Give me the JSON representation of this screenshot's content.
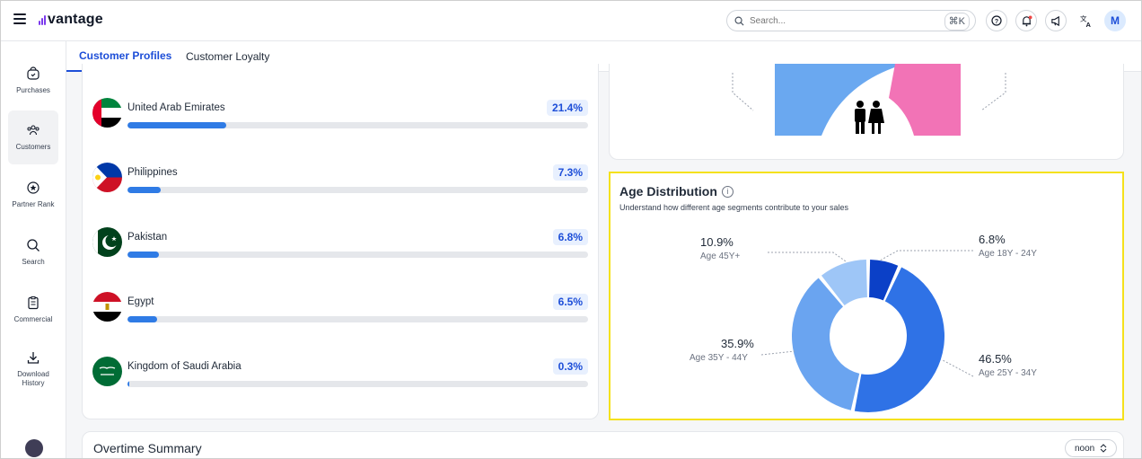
{
  "app": {
    "logo_text": "vantage",
    "brand_color": "#7c3aed",
    "accent_color": "#1d4ed8"
  },
  "topbar": {
    "search_placeholder": "Search...",
    "search_shortcut": "⌘K",
    "avatar_initial": "M",
    "icons": [
      "help-icon",
      "notification-bell-icon",
      "announcement-megaphone-icon",
      "translate-icon"
    ]
  },
  "sidebar": {
    "items": [
      {
        "label": "Purchases",
        "icon": "purchases-icon"
      },
      {
        "label": "Customers",
        "icon": "customers-icon",
        "active": true
      },
      {
        "label": "Partner Rank",
        "icon": "partner-rank-icon"
      },
      {
        "label": "Search",
        "icon": "search-icon"
      },
      {
        "label": "Commercial",
        "icon": "commercial-icon"
      },
      {
        "label": "Download History",
        "icon": "download-icon"
      }
    ]
  },
  "tabs": [
    {
      "label": "Customer Profiles",
      "active": true
    },
    {
      "label": "Customer Loyalty",
      "active": false
    }
  ],
  "countries": [
    {
      "name": "United Arab Emirates",
      "percent_label": "21.4%",
      "value": 21.4
    },
    {
      "name": "Philippines",
      "percent_label": "7.3%",
      "value": 7.3
    },
    {
      "name": "Pakistan",
      "percent_label": "6.8%",
      "value": 6.8
    },
    {
      "name": "Egypt",
      "percent_label": "6.5%",
      "value": 6.5
    },
    {
      "name": "Kingdom of Saudi Arabia",
      "percent_label": "0.3%",
      "value": 0.3
    }
  ],
  "gender_chart": {
    "colors": {
      "male": "#6aa8f0",
      "female": "#f273b6"
    }
  },
  "age_distribution": {
    "title": "Age Distribution",
    "subtitle": "Understand how different age segments contribute to your sales",
    "segments": [
      {
        "label": "Age 18Y - 24Y",
        "percent_label": "6.8%",
        "value": 6.8,
        "color": "#0b40c7"
      },
      {
        "label": "Age 25Y - 34Y",
        "percent_label": "46.5%",
        "value": 46.5,
        "color": "#2f72e6"
      },
      {
        "label": "Age 35Y - 44Y",
        "percent_label": "35.9%",
        "value": 35.9,
        "color": "#6aa4f0"
      },
      {
        "label": "Age 45Y+",
        "percent_label": "10.9%",
        "value": 10.9,
        "color": "#9ec6f7"
      }
    ]
  },
  "summary": {
    "title": "Overtime Summary",
    "select_value": "noon"
  }
}
